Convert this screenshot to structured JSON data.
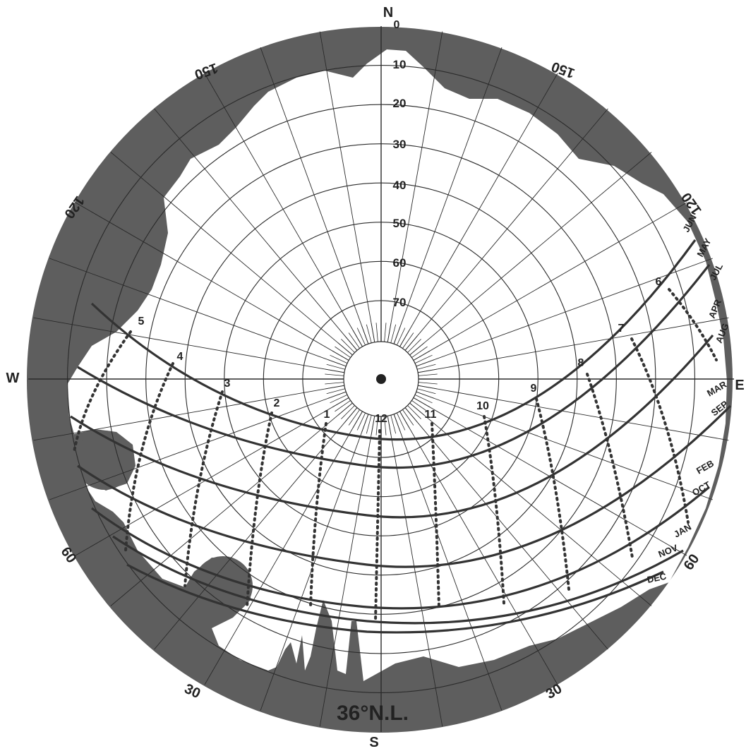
{
  "colors": {
    "obstruction": "#5e5e5e",
    "ink": "#222222",
    "background": "#ffffff"
  },
  "compass": {
    "north": "N",
    "south": "S",
    "east": "E",
    "west": "W"
  },
  "edge_labels": {
    "upper_left_150": "150",
    "upper_right_150": "150",
    "left_120": "120",
    "right_120": "120",
    "left_60": "60",
    "right_60": "60",
    "lower_left_30": "30",
    "lower_right_30": "30",
    "top_0": "0"
  },
  "altitude_labels": [
    "10",
    "20",
    "30",
    "40",
    "50",
    "60",
    "70"
  ],
  "hour_labels": [
    "12",
    "1",
    "2",
    "3",
    "4",
    "5",
    "11",
    "10",
    "9",
    "8",
    "7",
    "6"
  ],
  "month_labels": {
    "jun": "JUN",
    "may": "MAY",
    "jul": "JUL",
    "apr": "APR",
    "aug": "AUG",
    "mar": "MAR",
    "sep": "SEP",
    "feb": "FEB",
    "oct": "OCT",
    "jan": "JAN",
    "nov": "NOV",
    "dec": "DEC"
  },
  "latitude_label": "36°N.L."
}
